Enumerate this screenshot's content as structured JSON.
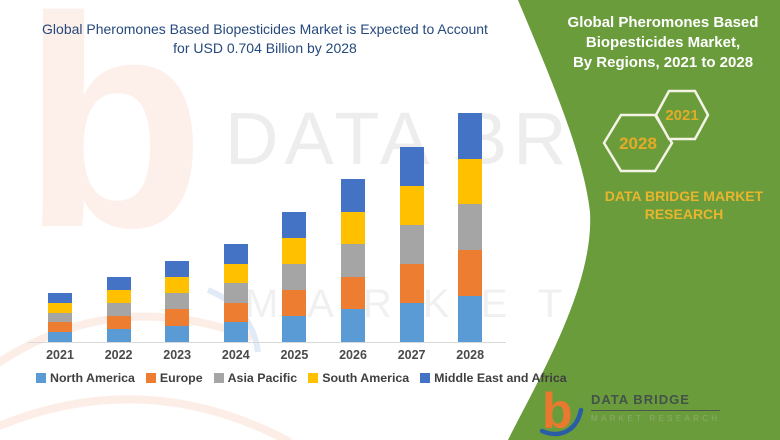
{
  "colors": {
    "accent_green": "#6A9C3C",
    "title_navy": "#25497C",
    "gold": "#E9B52E",
    "axis_line": "#D9D9D9"
  },
  "header": {
    "title_line1": "Global Pheromones Based Biopesticides Market is Expected to Account",
    "title_line2": "for USD 0.704 Billion by 2028"
  },
  "side_panel": {
    "heading_lines": [
      "Global Pheromones Based",
      "Biopesticides Market,",
      "By Regions, 2021 to 2028"
    ],
    "hex_small_label": "2021",
    "hex_large_label": "2028",
    "brand_line1": "DATA BRIDGE MARKET",
    "brand_line2": "RESEARCH"
  },
  "footer_logo": {
    "glyph": "b",
    "name": "DATA BRIDGE",
    "tagline": "MARKET RESEARCH"
  },
  "watermark": {
    "letter": "b",
    "text_top": "DATA BR",
    "text_bottom": "M A R K E T  R E"
  },
  "chart_data": {
    "type": "bar",
    "stacked": true,
    "title": "Global Pheromones Based Biopesticides Market, By Regions, 2021 to 2028",
    "unit": "USD Billion",
    "categories": [
      "2021",
      "2022",
      "2023",
      "2024",
      "2025",
      "2026",
      "2027",
      "2028"
    ],
    "series": [
      {
        "name": "North America",
        "color": "#5B9BD5",
        "values": [
          0.03,
          0.04,
          0.05,
          0.06,
          0.08,
          0.1,
          0.12,
          0.1408
        ]
      },
      {
        "name": "Europe",
        "color": "#ED7D31",
        "values": [
          0.03,
          0.04,
          0.05,
          0.06,
          0.08,
          0.1,
          0.12,
          0.1408
        ]
      },
      {
        "name": "Asia Pacific",
        "color": "#A5A5A5",
        "values": [
          0.03,
          0.04,
          0.05,
          0.06,
          0.08,
          0.1,
          0.12,
          0.1408
        ]
      },
      {
        "name": "South America",
        "color": "#FFC000",
        "values": [
          0.03,
          0.04,
          0.05,
          0.06,
          0.08,
          0.1,
          0.12,
          0.1408
        ]
      },
      {
        "name": "Middle East and Africa",
        "color": "#4472C4",
        "values": [
          0.03,
          0.04,
          0.05,
          0.06,
          0.08,
          0.1,
          0.12,
          0.1408
        ]
      }
    ],
    "totals": [
      0.15,
      0.2,
      0.25,
      0.3,
      0.4,
      0.5,
      0.6,
      0.704
    ],
    "xlabel": "",
    "ylabel": "",
    "ylim": [
      0,
      0.78
    ],
    "grid": false,
    "y_axis_visible": false,
    "legend_position": "bottom"
  }
}
